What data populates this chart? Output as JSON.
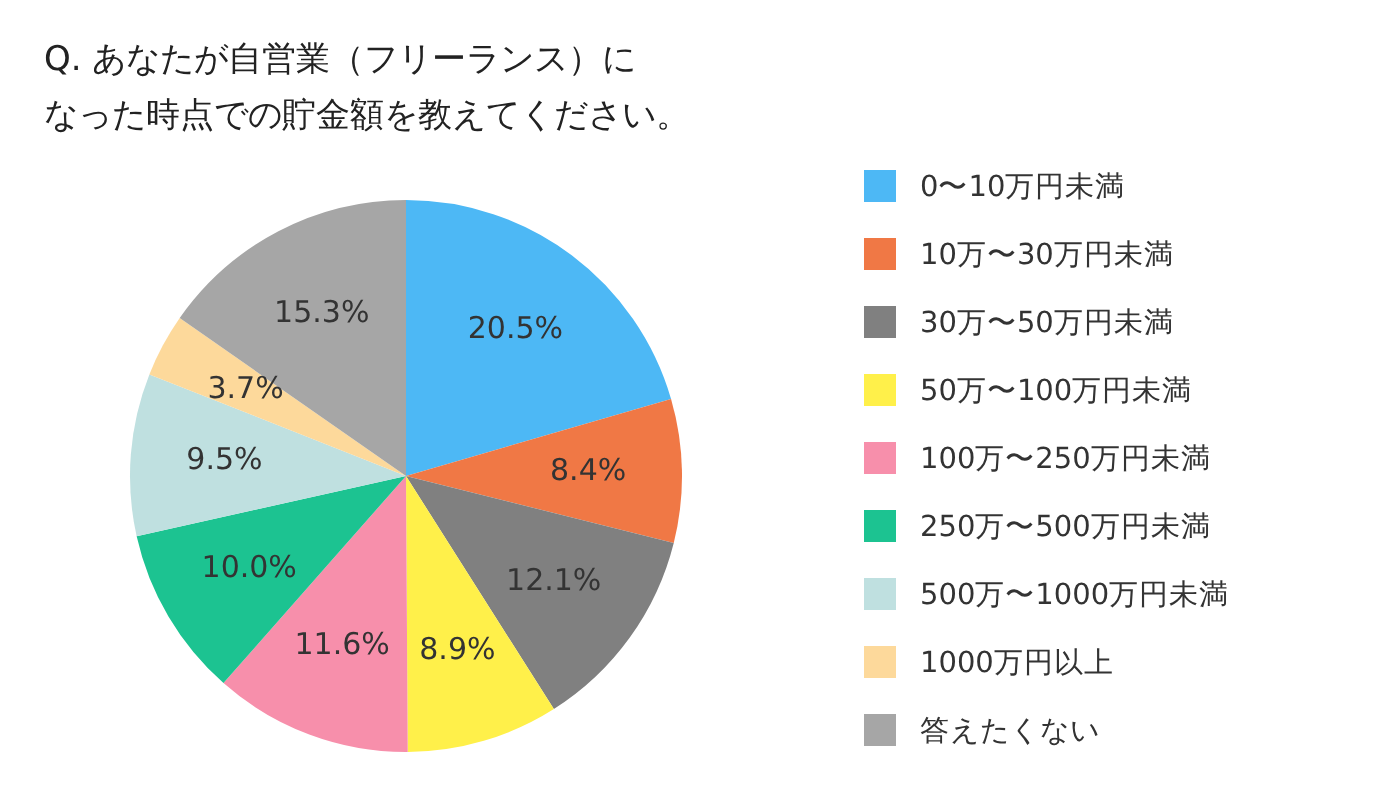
{
  "chart_data": {
    "type": "pie",
    "title": "Q. あなたが自営業（フリーランス）になった時点での貯金額を教えてください。",
    "categories": [
      "0〜10万円未満",
      "10万〜30万円未満",
      "30万〜50万円未満",
      "50万〜100万円未満",
      "100万〜250万円未満",
      "250万〜500万円未満",
      "500万〜1000万円未満",
      "1000万円以上",
      "答えたくない"
    ],
    "values": [
      20.5,
      8.4,
      12.1,
      8.9,
      11.6,
      10.0,
      9.5,
      3.7,
      15.3
    ],
    "value_labels": [
      "20.5%",
      "8.4%",
      "12.1%",
      "8.9%",
      "11.6%",
      "10.0%",
      "9.5%",
      "3.7%",
      "15.3%"
    ],
    "colors": [
      "#4db8f5",
      "#f07845",
      "#808080",
      "#fff04a",
      "#f78fab",
      "#1cc391",
      "#bfe0e0",
      "#fdd99b",
      "#a6a6a6"
    ],
    "legend": "right"
  }
}
